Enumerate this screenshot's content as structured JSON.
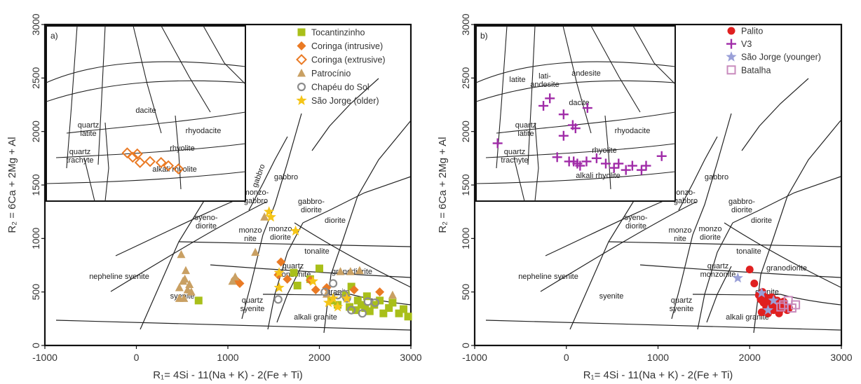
{
  "chart_data": [
    {
      "type": "scatter",
      "panel_letter": "a)",
      "xlabel": "R₁= 4Si - 11(Na + K) - 2(Fe + Ti)",
      "ylabel": "R₂ = 6Ca + 2Mg + Al",
      "xlim": [
        -1000,
        3000
      ],
      "ylim": [
        0,
        3000
      ],
      "x_ticks": [
        "-1000",
        "0",
        "1000",
        "2000",
        "3000"
      ],
      "y_ticks": [
        "0",
        "500",
        "1000",
        "1500",
        "2000",
        "2500",
        "3000"
      ],
      "grid": false,
      "legend_position": "top-right",
      "field_labels": [
        "gabbro",
        "gabbro",
        "gabbro-diorite",
        "monzo-gabbro",
        "syeno-diorite",
        "monzo-nite",
        "monzo-diorite",
        "diorite",
        "tonalite",
        "granodiorite",
        "quartz monzonite",
        "nepheline syenite",
        "syenite",
        "quartz syenite",
        "granite",
        "alkali granite"
      ],
      "inset": {
        "field_labels": [
          "dacite",
          "rhyodacite",
          "quartz latite",
          "quartz trachyte",
          "rhyolite",
          "alkali rhyolite"
        ]
      },
      "series": [
        {
          "name": "Tocantinzinho",
          "color": "#a9bf1a",
          "marker": "square",
          "x": [
            680,
            1720,
            1760,
            1900,
            2000,
            2130,
            2200,
            2290,
            2330,
            2350,
            2400,
            2420,
            2460,
            2500,
            2520,
            2550,
            2600,
            2660,
            2700,
            2760,
            2800,
            2870,
            2920,
            2970
          ],
          "y": [
            420,
            680,
            560,
            620,
            720,
            420,
            380,
            470,
            360,
            550,
            330,
            420,
            380,
            350,
            460,
            320,
            380,
            420,
            300,
            350,
            400,
            300,
            340,
            270
          ]
        },
        {
          "name": "Coringa (intrusive)",
          "color": "#ea7a24",
          "marker": "diamond",
          "x": [
            1080,
            1130,
            1550,
            1580,
            1650,
            1900,
            1960,
            2080,
            2380,
            2660
          ],
          "y": [
            620,
            580,
            660,
            780,
            620,
            610,
            520,
            540,
            520,
            500
          ]
        },
        {
          "name": "Coringa (extrusive)",
          "color": "#ea7a24",
          "marker": "diamond-open",
          "x": [
            -100,
            -40,
            10,
            40,
            150,
            270,
            350,
            460
          ],
          "y": [
            1800,
            1760,
            1790,
            1710,
            1720,
            1710,
            1680,
            1650
          ]
        },
        {
          "name": "Patrocínio",
          "color": "#c9a063",
          "marker": "triangle",
          "x": [
            490,
            510,
            470,
            530,
            540,
            560,
            580,
            600,
            470,
            520,
            1050,
            1080,
            1300,
            1400,
            2080,
            2230,
            2340,
            2440,
            2800
          ],
          "y": [
            850,
            600,
            540,
            620,
            700,
            520,
            570,
            500,
            440,
            440,
            600,
            640,
            870,
            1200,
            480,
            690,
            690,
            700,
            470
          ]
        },
        {
          "name": "Chapéu do Sol",
          "color": "#8c8c8c",
          "marker": "circle-open",
          "x": [
            1550,
            2060,
            2150,
            2200,
            2270,
            2300,
            2350,
            2470,
            2530,
            2610
          ],
          "y": [
            430,
            500,
            580,
            470,
            480,
            440,
            330,
            300,
            410,
            400
          ]
        },
        {
          "name": "São Jorge (older)",
          "color": "#f5c518",
          "marker": "star",
          "x": [
            1450,
            1470,
            1560,
            1560,
            1740,
            1930,
            2100,
            2150,
            2200,
            2300
          ],
          "y": [
            1250,
            1200,
            680,
            540,
            1070,
            600,
            400,
            440,
            360,
            440
          ]
        }
      ]
    },
    {
      "type": "scatter",
      "panel_letter": "b)",
      "xlabel": "R₁= 4Si - 11(Na + K) - 2(Fe + Ti)",
      "ylabel": "R₂ = 6Ca + 2Mg + Al",
      "xlim": [
        -1000,
        3000
      ],
      "ylim": [
        0,
        3000
      ],
      "x_ticks": [
        "-1000",
        "0",
        "1000",
        "2000",
        "3000"
      ],
      "y_ticks": [
        "0",
        "500",
        "1000",
        "1500",
        "2000",
        "2500",
        "3000"
      ],
      "grid": false,
      "legend_position": "top-right",
      "field_labels": [
        "gabbro",
        "gabbro-diorite",
        "onzo-gabbro",
        "syeno-diorite",
        "monzo-nite",
        "monzo-diorite",
        "diorite",
        "tonalite",
        "granodiorite",
        "quartz monzonite",
        "nepheline syenite",
        "syenite",
        "quartz syenite",
        "granite",
        "alkali granite"
      ],
      "inset": {
        "field_labels": [
          "latite",
          "lati-andesite",
          "andesite",
          "dacite",
          "rhyodacite",
          "quartz latite",
          "quartz trachyte",
          "rhyolite",
          "alkali rhyolite"
        ]
      },
      "series": [
        {
          "name": "Palito",
          "color": "#e02020",
          "marker": "circle",
          "x": [
            2000,
            2050,
            2100,
            2120,
            2150,
            2170,
            2190,
            2210,
            2230,
            2250,
            2270,
            2290,
            2310,
            2330,
            2350,
            2370,
            2390,
            2410,
            2430,
            2130,
            2200,
            2260,
            2320,
            2380,
            2140,
            2180,
            2240,
            2300
          ],
          "y": [
            710,
            580,
            470,
            430,
            400,
            450,
            420,
            380,
            360,
            440,
            400,
            370,
            350,
            330,
            390,
            410,
            360,
            330,
            350,
            310,
            300,
            330,
            300,
            380,
            500,
            360,
            450,
            420
          ]
        },
        {
          "name": "V3",
          "color": "#a02ca8",
          "marker": "plus",
          "x": [
            -750,
            -250,
            -180,
            -30,
            70,
            100,
            230,
            -30,
            80,
            120,
            220,
            330,
            430,
            520,
            570,
            650,
            720,
            820,
            870,
            1040,
            -100,
            30,
            150
          ],
          "y": [
            1890,
            2240,
            2310,
            2160,
            2060,
            2030,
            2220,
            1960,
            1720,
            1700,
            1720,
            1750,
            1700,
            1660,
            1700,
            1640,
            1680,
            1640,
            1680,
            1770,
            1760,
            1720,
            1680
          ]
        },
        {
          "name": "São Jorge (younger)",
          "color": "#9aa0d8",
          "marker": "star",
          "x": [
            1870,
            2130,
            2200,
            2260
          ],
          "y": [
            630,
            490,
            330,
            420
          ]
        },
        {
          "name": "Batalha",
          "color": "#c98bbd",
          "marker": "square-open",
          "x": [
            2340,
            2370,
            2420,
            2460,
            2500
          ],
          "y": [
            360,
            380,
            420,
            350,
            380
          ]
        }
      ]
    }
  ]
}
